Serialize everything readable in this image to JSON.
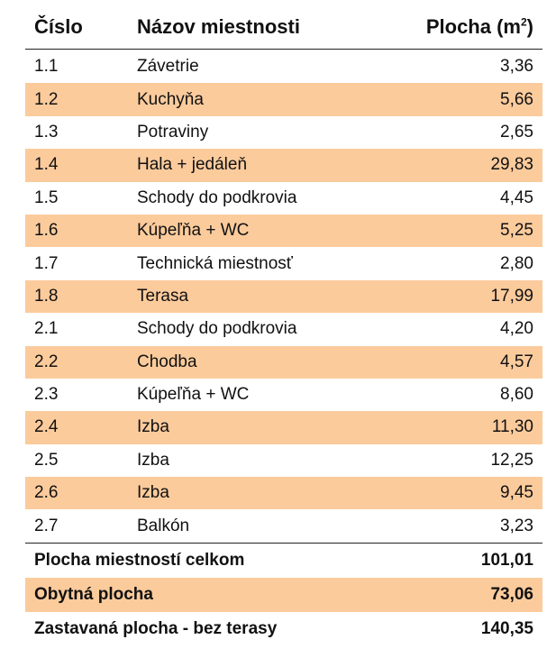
{
  "headers": {
    "number": "Číslo",
    "name": "Názov miestnosti",
    "area": "Plocha (m",
    "area_sup": "2",
    "area_close": ")"
  },
  "rows": [
    {
      "num": "1.1",
      "name": "Závetrie",
      "area": "3,36"
    },
    {
      "num": "1.2",
      "name": "Kuchyňa",
      "area": "5,66"
    },
    {
      "num": "1.3",
      "name": "Potraviny",
      "area": "2,65"
    },
    {
      "num": "1.4",
      "name": "Hala + jedáleň",
      "area": "29,83"
    },
    {
      "num": "1.5",
      "name": "Schody do podkrovia",
      "area": "4,45"
    },
    {
      "num": "1.6",
      "name": "Kúpeľňa + WC",
      "area": "5,25"
    },
    {
      "num": "1.7",
      "name": "Technická miestnosť",
      "area": "2,80"
    },
    {
      "num": "1.8",
      "name": "Terasa",
      "area": "17,99"
    },
    {
      "num": "2.1",
      "name": "Schody do podkrovia",
      "area": "4,20"
    },
    {
      "num": "2.2",
      "name": "Chodba",
      "area": "4,57"
    },
    {
      "num": "2.3",
      "name": "Kúpeľňa + WC",
      "area": "8,60"
    },
    {
      "num": "2.4",
      "name": "Izba",
      "area": "11,30"
    },
    {
      "num": "2.5",
      "name": "Izba",
      "area": "12,25"
    },
    {
      "num": "2.6",
      "name": "Izba",
      "area": "9,45"
    },
    {
      "num": "2.7",
      "name": "Balkón",
      "area": "3,23"
    }
  ],
  "summary": [
    {
      "label": "Plocha miestností celkom",
      "value": "101,01"
    },
    {
      "label": "Obytná plocha",
      "value": "73,06"
    },
    {
      "label": "Zastavaná plocha - bez terasy",
      "value": "140,35"
    }
  ],
  "colors": {
    "stripe": "#fbcb9c",
    "rule": "#222222"
  }
}
